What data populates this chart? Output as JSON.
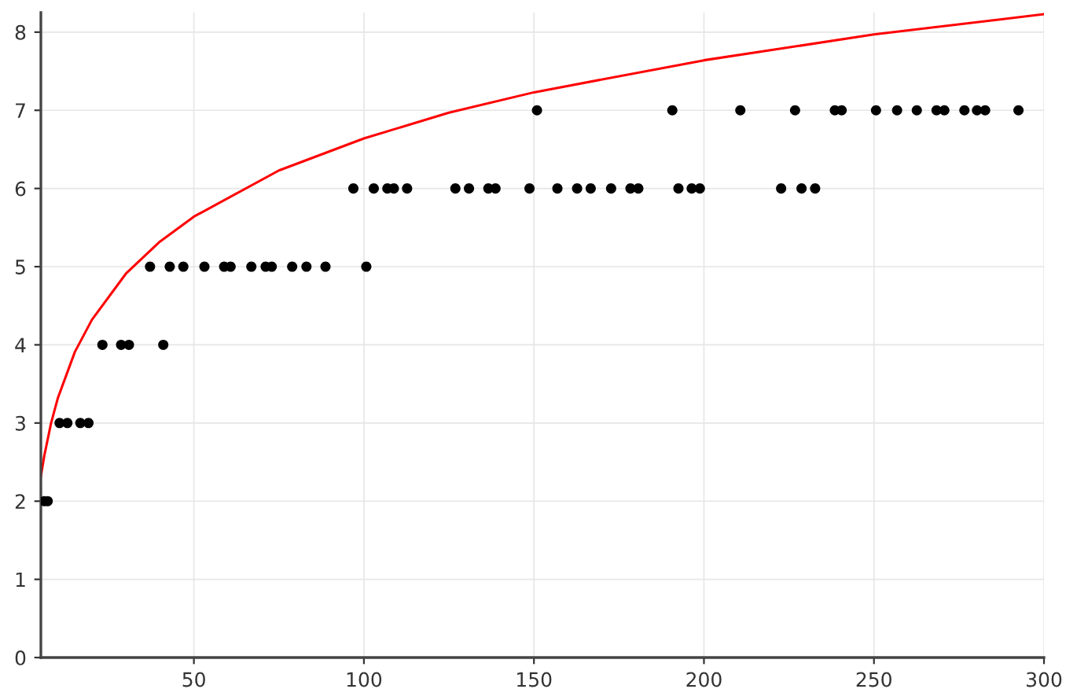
{
  "chart_data": {
    "type": "scatter",
    "xlim": [
      5,
      300
    ],
    "ylim": [
      0,
      8.25
    ],
    "xticks": [
      50,
      100,
      150,
      200,
      250,
      300
    ],
    "yticks": [
      0,
      1,
      2,
      3,
      4,
      5,
      6,
      7,
      8
    ],
    "grid": true,
    "legend": false,
    "series": [
      {
        "color": "#000000",
        "marker": "circle",
        "x": [
          6,
          7,
          10.5,
          12.8,
          16.6,
          19,
          23.1,
          28.6,
          30.9,
          41,
          37.1,
          42.9,
          46.9,
          53.1,
          58.9,
          60.8,
          66.9,
          71.1,
          72.9,
          78.9,
          83.1,
          88.7,
          100.7,
          96.9,
          102.9,
          106.9,
          108.8,
          112.7,
          126.9,
          130.9,
          136.6,
          138.7,
          148.7,
          156.9,
          162.7,
          166.7,
          172.7,
          178.4,
          180.7,
          192.5,
          196.4,
          198.8,
          222.7,
          228.7,
          232.7,
          150.9,
          190.7,
          210.7,
          226.8,
          238.5,
          240.5,
          250.6,
          256.8,
          262.6,
          268.4,
          270.7,
          276.6,
          280.3,
          282.7,
          292.5
        ],
        "values": [
          2,
          2,
          3,
          3,
          3,
          3,
          4,
          4,
          4,
          4,
          5,
          5,
          5,
          5,
          5,
          5,
          5,
          5,
          5,
          5,
          5,
          5,
          5,
          6,
          6,
          6,
          6,
          6,
          6,
          6,
          6,
          6,
          6,
          6,
          6,
          6,
          6,
          6,
          6,
          6,
          6,
          6,
          6,
          6,
          6,
          7,
          7,
          7,
          7,
          7,
          7,
          7,
          7,
          7,
          7,
          7,
          7,
          7,
          7,
          7
        ]
      },
      {
        "type": "line",
        "color": "#ff0000",
        "marker": "none",
        "line_style": "solid",
        "x": [
          5,
          6,
          8,
          10,
          15,
          20,
          30,
          40,
          50,
          75,
          100,
          125,
          150,
          200,
          250,
          300
        ],
        "values": [
          2.32,
          2.58,
          3.0,
          3.32,
          3.91,
          4.32,
          4.91,
          5.32,
          5.64,
          6.23,
          6.64,
          6.97,
          7.23,
          7.64,
          7.97,
          8.23
        ]
      }
    ]
  }
}
